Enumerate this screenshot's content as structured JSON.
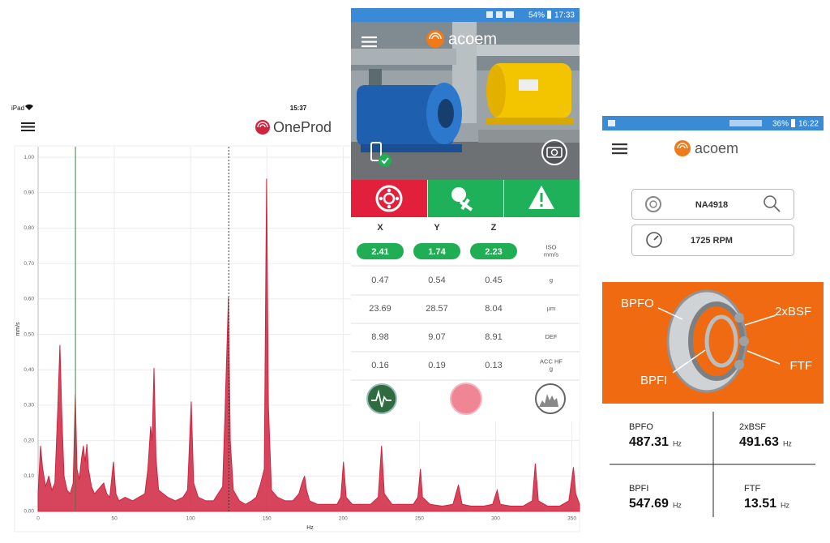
{
  "chart_data": {
    "type": "area",
    "x_label": "Hz",
    "y_label": "mm/s",
    "x": [
      0,
      1.6,
      3,
      5,
      7,
      9,
      11,
      13,
      14.3,
      15.5,
      17,
      19,
      21,
      23,
      24.4,
      25.5,
      27,
      28.5,
      29.7,
      30.8,
      32,
      33,
      35,
      37,
      39,
      41,
      43,
      45,
      47,
      49.4,
      51,
      53,
      57,
      62,
      66,
      70,
      72,
      73.8,
      74.8,
      76,
      77.3,
      79,
      82,
      85,
      90,
      95,
      98,
      100.4,
      102,
      105,
      110,
      115,
      118,
      121,
      122.5,
      124.8,
      126,
      128,
      132,
      136,
      140,
      143,
      146,
      148.3,
      149.8,
      151,
      153,
      157,
      162,
      167,
      171,
      173,
      174.7,
      176,
      178,
      183,
      190,
      196,
      198.5,
      200.2,
      202,
      206,
      212,
      218,
      223,
      225.2,
      227,
      232,
      240,
      246,
      249,
      250.7,
      252,
      257,
      265,
      272,
      275.6,
      278,
      284,
      292,
      298,
      301,
      303,
      310,
      318,
      324,
      326,
      328,
      334,
      342,
      348,
      351,
      352.5,
      355
    ],
    "values": [
      0.05,
      0.185,
      0.12,
      0.07,
      0.1,
      0.06,
      0.08,
      0.3,
      0.47,
      0.28,
      0.1,
      0.06,
      0.05,
      0.08,
      0.33,
      0.12,
      0.09,
      0.15,
      0.185,
      0.14,
      0.19,
      0.12,
      0.07,
      0.05,
      0.06,
      0.07,
      0.08,
      0.05,
      0.04,
      0.14,
      0.05,
      0.03,
      0.04,
      0.03,
      0.04,
      0.05,
      0.12,
      0.24,
      0.2,
      0.405,
      0.15,
      0.06,
      0.05,
      0.04,
      0.03,
      0.04,
      0.06,
      0.31,
      0.08,
      0.04,
      0.03,
      0.03,
      0.05,
      0.07,
      0.27,
      0.605,
      0.2,
      0.06,
      0.03,
      0.02,
      0.03,
      0.04,
      0.08,
      0.12,
      0.94,
      0.3,
      0.06,
      0.04,
      0.03,
      0.03,
      0.05,
      0.08,
      0.1,
      0.06,
      0.03,
      0.02,
      0.02,
      0.02,
      0.04,
      0.14,
      0.04,
      0.02,
      0.02,
      0.02,
      0.04,
      0.185,
      0.05,
      0.02,
      0.02,
      0.02,
      0.04,
      0.12,
      0.04,
      0.02,
      0.015,
      0.02,
      0.075,
      0.02,
      0.015,
      0.015,
      0.02,
      0.06,
      0.02,
      0.015,
      0.015,
      0.03,
      0.135,
      0.03,
      0.015,
      0.015,
      0.03,
      0.125,
      0.05,
      0.02
    ],
    "color": "#d0243f",
    "xlim": [
      0,
      355
    ],
    "xticks": [
      0,
      50,
      100,
      150,
      200,
      250,
      300,
      350
    ],
    "ylim": [
      0,
      1.03
    ],
    "yticks": [
      {
        "value": 0,
        "label": "0,00"
      },
      {
        "value": 0.1,
        "label": "0,10"
      },
      {
        "value": 0.2,
        "label": "0,20"
      },
      {
        "value": 0.3,
        "label": "0,30"
      },
      {
        "value": 0.4,
        "label": "0,40"
      },
      {
        "value": 0.5,
        "label": "0,50"
      },
      {
        "value": 0.6,
        "label": "0,60"
      },
      {
        "value": 0.7,
        "label": "0,70"
      },
      {
        "value": 0.8,
        "label": "0,80"
      },
      {
        "value": 0.9,
        "label": "0,90"
      },
      {
        "value": 1.0,
        "label": "1,00"
      }
    ],
    "grid": true,
    "cursors": [
      {
        "x": 24.5,
        "color": "#2e8b3c",
        "style": "solid"
      },
      {
        "x": 125,
        "color": "#333333",
        "style": "dotted"
      }
    ]
  },
  "tablet": {
    "status": {
      "device": "iPad",
      "time": "15:37"
    },
    "logo": "OneProd"
  },
  "phone1": {
    "status": {
      "battery": "54%",
      "time": "17:33"
    },
    "logo": "acoem",
    "table": {
      "columns": [
        "X",
        "Y",
        "Z"
      ],
      "rows": [
        {
          "values": [
            2.41,
            1.74,
            2.23
          ],
          "unit": [
            "ISO",
            "mm/s"
          ]
        },
        {
          "values": [
            0.47,
            0.54,
            0.45
          ],
          "unit": [
            "g"
          ]
        },
        {
          "values": [
            23.69,
            28.57,
            8.04
          ],
          "unit": [
            "µm"
          ]
        },
        {
          "values": [
            8.98,
            9.07,
            8.91
          ],
          "unit": [
            "DEF"
          ]
        },
        {
          "values": [
            0.16,
            0.19,
            0.13
          ],
          "unit": [
            "ACC HF",
            "g"
          ]
        }
      ]
    }
  },
  "phone2": {
    "status": {
      "battery": "36%",
      "time": "16:22"
    },
    "logo": "acoem",
    "asset": "NA4918",
    "speed": "1725 RPM",
    "diagram_labels": [
      "BPFO",
      "2xBSF",
      "FTF",
      "BPFI"
    ],
    "frequencies": [
      {
        "name": "BPFO",
        "value": 487.31,
        "unit": "Hz"
      },
      {
        "name": "2xBSF",
        "value": 491.63,
        "unit": "Hz"
      },
      {
        "name": "BPFI",
        "value": 547.69,
        "unit": "Hz"
      },
      {
        "name": "FTF",
        "value": 13.51,
        "unit": "Hz"
      }
    ]
  }
}
